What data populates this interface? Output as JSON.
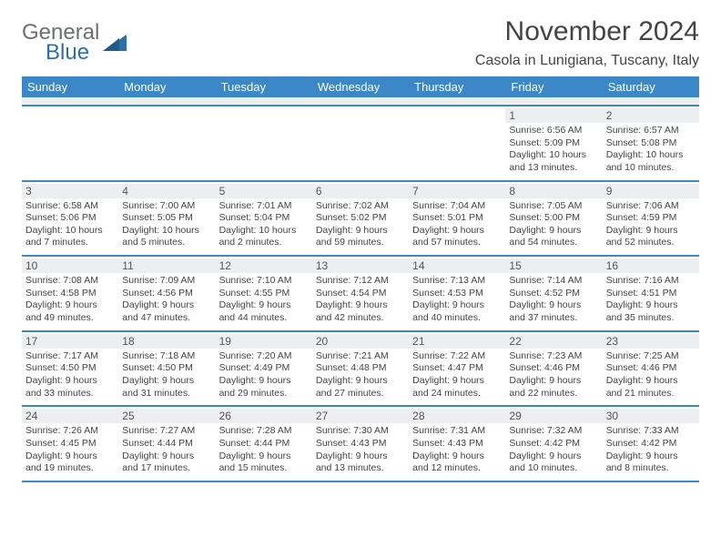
{
  "logo": {
    "text1": "General",
    "text2": "Blue"
  },
  "title": "November 2024",
  "location": "Casola in Lunigiana, Tuscany, Italy",
  "colors": {
    "header_bg": "#3b87c8",
    "header_text": "#ffffff",
    "daynum_bg": "#eceef0",
    "border": "#3b87c8",
    "body_text": "#444444"
  },
  "weekdays": [
    "Sunday",
    "Monday",
    "Tuesday",
    "Wednesday",
    "Thursday",
    "Friday",
    "Saturday"
  ],
  "weeks": [
    [
      {
        "n": "",
        "lines": []
      },
      {
        "n": "",
        "lines": []
      },
      {
        "n": "",
        "lines": []
      },
      {
        "n": "",
        "lines": []
      },
      {
        "n": "",
        "lines": []
      },
      {
        "n": "1",
        "lines": [
          "Sunrise: 6:56 AM",
          "Sunset: 5:09 PM",
          "Daylight: 10 hours",
          "and 13 minutes."
        ]
      },
      {
        "n": "2",
        "lines": [
          "Sunrise: 6:57 AM",
          "Sunset: 5:08 PM",
          "Daylight: 10 hours",
          "and 10 minutes."
        ]
      }
    ],
    [
      {
        "n": "3",
        "lines": [
          "Sunrise: 6:58 AM",
          "Sunset: 5:06 PM",
          "Daylight: 10 hours",
          "and 7 minutes."
        ]
      },
      {
        "n": "4",
        "lines": [
          "Sunrise: 7:00 AM",
          "Sunset: 5:05 PM",
          "Daylight: 10 hours",
          "and 5 minutes."
        ]
      },
      {
        "n": "5",
        "lines": [
          "Sunrise: 7:01 AM",
          "Sunset: 5:04 PM",
          "Daylight: 10 hours",
          "and 2 minutes."
        ]
      },
      {
        "n": "6",
        "lines": [
          "Sunrise: 7:02 AM",
          "Sunset: 5:02 PM",
          "Daylight: 9 hours",
          "and 59 minutes."
        ]
      },
      {
        "n": "7",
        "lines": [
          "Sunrise: 7:04 AM",
          "Sunset: 5:01 PM",
          "Daylight: 9 hours",
          "and 57 minutes."
        ]
      },
      {
        "n": "8",
        "lines": [
          "Sunrise: 7:05 AM",
          "Sunset: 5:00 PM",
          "Daylight: 9 hours",
          "and 54 minutes."
        ]
      },
      {
        "n": "9",
        "lines": [
          "Sunrise: 7:06 AM",
          "Sunset: 4:59 PM",
          "Daylight: 9 hours",
          "and 52 minutes."
        ]
      }
    ],
    [
      {
        "n": "10",
        "lines": [
          "Sunrise: 7:08 AM",
          "Sunset: 4:58 PM",
          "Daylight: 9 hours",
          "and 49 minutes."
        ]
      },
      {
        "n": "11",
        "lines": [
          "Sunrise: 7:09 AM",
          "Sunset: 4:56 PM",
          "Daylight: 9 hours",
          "and 47 minutes."
        ]
      },
      {
        "n": "12",
        "lines": [
          "Sunrise: 7:10 AM",
          "Sunset: 4:55 PM",
          "Daylight: 9 hours",
          "and 44 minutes."
        ]
      },
      {
        "n": "13",
        "lines": [
          "Sunrise: 7:12 AM",
          "Sunset: 4:54 PM",
          "Daylight: 9 hours",
          "and 42 minutes."
        ]
      },
      {
        "n": "14",
        "lines": [
          "Sunrise: 7:13 AM",
          "Sunset: 4:53 PM",
          "Daylight: 9 hours",
          "and 40 minutes."
        ]
      },
      {
        "n": "15",
        "lines": [
          "Sunrise: 7:14 AM",
          "Sunset: 4:52 PM",
          "Daylight: 9 hours",
          "and 37 minutes."
        ]
      },
      {
        "n": "16",
        "lines": [
          "Sunrise: 7:16 AM",
          "Sunset: 4:51 PM",
          "Daylight: 9 hours",
          "and 35 minutes."
        ]
      }
    ],
    [
      {
        "n": "17",
        "lines": [
          "Sunrise: 7:17 AM",
          "Sunset: 4:50 PM",
          "Daylight: 9 hours",
          "and 33 minutes."
        ]
      },
      {
        "n": "18",
        "lines": [
          "Sunrise: 7:18 AM",
          "Sunset: 4:50 PM",
          "Daylight: 9 hours",
          "and 31 minutes."
        ]
      },
      {
        "n": "19",
        "lines": [
          "Sunrise: 7:20 AM",
          "Sunset: 4:49 PM",
          "Daylight: 9 hours",
          "and 29 minutes."
        ]
      },
      {
        "n": "20",
        "lines": [
          "Sunrise: 7:21 AM",
          "Sunset: 4:48 PM",
          "Daylight: 9 hours",
          "and 27 minutes."
        ]
      },
      {
        "n": "21",
        "lines": [
          "Sunrise: 7:22 AM",
          "Sunset: 4:47 PM",
          "Daylight: 9 hours",
          "and 24 minutes."
        ]
      },
      {
        "n": "22",
        "lines": [
          "Sunrise: 7:23 AM",
          "Sunset: 4:46 PM",
          "Daylight: 9 hours",
          "and 22 minutes."
        ]
      },
      {
        "n": "23",
        "lines": [
          "Sunrise: 7:25 AM",
          "Sunset: 4:46 PM",
          "Daylight: 9 hours",
          "and 21 minutes."
        ]
      }
    ],
    [
      {
        "n": "24",
        "lines": [
          "Sunrise: 7:26 AM",
          "Sunset: 4:45 PM",
          "Daylight: 9 hours",
          "and 19 minutes."
        ]
      },
      {
        "n": "25",
        "lines": [
          "Sunrise: 7:27 AM",
          "Sunset: 4:44 PM",
          "Daylight: 9 hours",
          "and 17 minutes."
        ]
      },
      {
        "n": "26",
        "lines": [
          "Sunrise: 7:28 AM",
          "Sunset: 4:44 PM",
          "Daylight: 9 hours",
          "and 15 minutes."
        ]
      },
      {
        "n": "27",
        "lines": [
          "Sunrise: 7:30 AM",
          "Sunset: 4:43 PM",
          "Daylight: 9 hours",
          "and 13 minutes."
        ]
      },
      {
        "n": "28",
        "lines": [
          "Sunrise: 7:31 AM",
          "Sunset: 4:43 PM",
          "Daylight: 9 hours",
          "and 12 minutes."
        ]
      },
      {
        "n": "29",
        "lines": [
          "Sunrise: 7:32 AM",
          "Sunset: 4:42 PM",
          "Daylight: 9 hours",
          "and 10 minutes."
        ]
      },
      {
        "n": "30",
        "lines": [
          "Sunrise: 7:33 AM",
          "Sunset: 4:42 PM",
          "Daylight: 9 hours",
          "and 8 minutes."
        ]
      }
    ]
  ]
}
